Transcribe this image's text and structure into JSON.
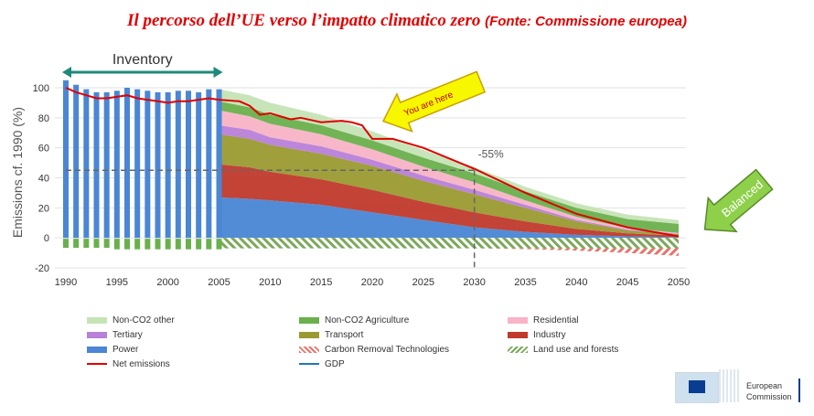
{
  "title": {
    "main": "Il percorso dell’UE verso l’impatto climatico zero",
    "source": "(Fonte: Commissione europea)"
  },
  "annotations": {
    "inventory": "Inventory",
    "you_are_here": "You are here",
    "minus55": "-55%",
    "balanced": "Balanced"
  },
  "logo": {
    "line1": "European",
    "line2": "Commission"
  },
  "colors": {
    "non_co2_other": "#c5e4b5",
    "non_co2_agri": "#6ab04c",
    "residential": "#f8b3c6",
    "tertiary": "#b880d8",
    "transport": "#9a9a32",
    "industry": "#c0392b",
    "power": "#4a86d4",
    "net": "#e00000",
    "gdp": "#1f77b4",
    "removal": "#e8736b",
    "land": "#7aa85a"
  },
  "chart_data": {
    "type": "area",
    "xlabel": "",
    "ylabel": "Emissions cf. 1990 (%)",
    "xlim": [
      1990,
      2050
    ],
    "ylim": [
      -20,
      100
    ],
    "x_ticks": [
      1990,
      1995,
      2000,
      2005,
      2010,
      2015,
      2020,
      2025,
      2030,
      2035,
      2040,
      2045,
      2050
    ],
    "y_ticks": [
      -20,
      0,
      20,
      40,
      60,
      80,
      100
    ],
    "inventory_bars": {
      "years": [
        1990,
        1991,
        1992,
        1993,
        1994,
        1995,
        1996,
        1997,
        1998,
        1999,
        2000,
        2001,
        2002,
        2003,
        2004,
        2005
      ],
      "values": [
        105,
        102,
        99,
        97,
        97,
        98,
        100,
        99,
        98,
        97,
        97,
        98,
        98,
        97,
        99,
        99
      ],
      "sinks": [
        -6,
        -6,
        -6,
        -6,
        -6,
        -7,
        -7,
        -7,
        -7,
        -7,
        -7,
        -7,
        -7,
        -7,
        -7,
        -7
      ]
    },
    "x": [
      2005,
      2008,
      2010,
      2015,
      2020,
      2025,
      2030,
      2035,
      2040,
      2045,
      2050
    ],
    "series": [
      {
        "name": "Power",
        "values": [
          27,
          26,
          25,
          22,
          17,
          12,
          7,
          4,
          2,
          1,
          0.5
        ]
      },
      {
        "name": "Industry",
        "values": [
          22,
          21,
          19,
          17,
          15,
          12,
          10,
          7,
          4,
          2,
          1
        ]
      },
      {
        "name": "Transport",
        "values": [
          20,
          19,
          18,
          17,
          16,
          14,
          12,
          9,
          5,
          2,
          1
        ]
      },
      {
        "name": "Tertiary",
        "values": [
          6,
          6,
          5,
          5,
          4,
          3.5,
          3,
          2,
          1,
          0.5,
          0.3
        ]
      },
      {
        "name": "Residential",
        "values": [
          10,
          9,
          9,
          8,
          7,
          6,
          5,
          3,
          2,
          1,
          0.5
        ]
      },
      {
        "name": "Non-CO2 Agriculture",
        "values": [
          6,
          6,
          6,
          6,
          6,
          6,
          6,
          6,
          6,
          6,
          6
        ]
      },
      {
        "name": "Non-CO2 other",
        "values": [
          8,
          8,
          8,
          7,
          6,
          5,
          4,
          3,
          3,
          3,
          2.5
        ]
      }
    ],
    "land_use": {
      "name": "Land use and forests",
      "values": [
        -7,
        -7,
        -7,
        -7,
        -7,
        -7,
        -7,
        -7,
        -7,
        -7,
        -7
      ]
    },
    "removal": {
      "name": "Carbon Removal Technologies",
      "values": [
        0,
        0,
        0,
        0,
        0,
        0,
        0,
        -0.5,
        -1.5,
        -3,
        -5
      ]
    },
    "net": {
      "name": "Net emissions",
      "x": [
        2005,
        2007,
        2008,
        2009,
        2010,
        2012,
        2013,
        2015,
        2017,
        2018,
        2019,
        2020,
        2022,
        2025,
        2030,
        2035,
        2040,
        2045,
        2050
      ],
      "values": [
        92,
        91,
        88,
        82,
        83,
        79,
        80,
        77,
        78,
        77,
        75,
        66,
        66,
        60,
        46,
        30,
        16,
        7,
        1
      ]
    },
    "gdp": {
      "name": "GDP"
    },
    "legend": [
      [
        "Non-CO2 other",
        "Non-CO2 Agriculture",
        "Residential"
      ],
      [
        "Tertiary",
        "Transport",
        "Industry"
      ],
      [
        "Power",
        "Carbon Removal Technologies",
        "Land use and forests"
      ],
      [
        "Net emissions",
        "GDP"
      ]
    ],
    "legend_position": "bottom"
  }
}
